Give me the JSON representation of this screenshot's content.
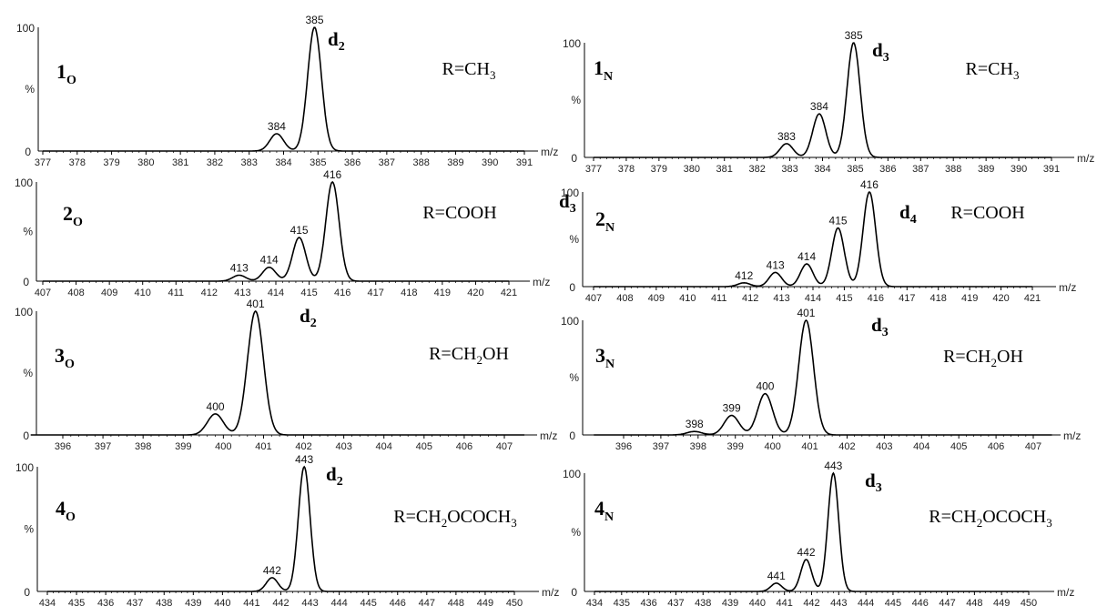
{
  "chart_data": [
    {
      "type": "line",
      "label": "1",
      "label_sub": "O",
      "r_group": "R=CH3",
      "d_label": "d",
      "d_sub": "2",
      "y_axis_labels": {
        "top": "100",
        "mid": "%",
        "bottom": "0"
      },
      "x_unit": "m/z",
      "xlim": [
        377,
        391
      ],
      "ylim": [
        0,
        100
      ],
      "ticks": [
        377,
        378,
        379,
        380,
        381,
        382,
        383,
        384,
        385,
        386,
        387,
        388,
        389,
        390,
        391
      ],
      "peaks": [
        {
          "x": 383.8,
          "y": 14,
          "label": "384"
        },
        {
          "x": 384.9,
          "y": 100,
          "label": "385"
        }
      ]
    },
    {
      "type": "line",
      "label": "1",
      "label_sub": "N",
      "r_group": "R=CH3",
      "d_label": "d",
      "d_sub": "3",
      "y_axis_labels": {
        "top": "100",
        "mid": "%",
        "bottom": "0"
      },
      "x_unit": "m/z",
      "xlim": [
        377,
        391
      ],
      "ylim": [
        0,
        100
      ],
      "ticks": [
        377,
        378,
        379,
        380,
        381,
        382,
        383,
        384,
        385,
        386,
        387,
        388,
        389,
        390,
        391
      ],
      "peaks": [
        {
          "x": 382.9,
          "y": 12,
          "label": "383"
        },
        {
          "x": 383.9,
          "y": 38,
          "label": "384"
        },
        {
          "x": 384.95,
          "y": 100,
          "label": "385"
        }
      ]
    },
    {
      "type": "line",
      "label": "2",
      "label_sub": "O",
      "r_group": "R=COOH",
      "d_label": "d",
      "d_sub": "3",
      "y_axis_labels": {
        "top": "100",
        "mid": "%",
        "bottom": "0"
      },
      "x_unit": "m/z",
      "xlim": [
        407,
        421
      ],
      "ylim": [
        0,
        100
      ],
      "ticks": [
        407,
        408,
        409,
        410,
        411,
        412,
        413,
        414,
        415,
        416,
        417,
        418,
        419,
        420,
        421
      ],
      "peaks": [
        {
          "x": 412.9,
          "y": 6,
          "label": "413"
        },
        {
          "x": 413.8,
          "y": 14,
          "label": "414"
        },
        {
          "x": 414.7,
          "y": 44,
          "label": "415"
        },
        {
          "x": 415.7,
          "y": 100,
          "label": "416"
        }
      ]
    },
    {
      "type": "line",
      "label": "2",
      "label_sub": "N",
      "r_group": "R=COOH",
      "d_label": "d",
      "d_sub": "4",
      "y_axis_labels": {
        "top": "100",
        "mid": "%",
        "bottom": "0"
      },
      "x_unit": "m/z",
      "xlim": [
        407,
        421
      ],
      "ylim": [
        0,
        100
      ],
      "ticks": [
        407,
        408,
        409,
        410,
        411,
        412,
        413,
        414,
        415,
        416,
        417,
        418,
        419,
        420,
        421
      ],
      "peaks": [
        {
          "x": 411.8,
          "y": 4,
          "label": "412"
        },
        {
          "x": 412.8,
          "y": 15,
          "label": "413"
        },
        {
          "x": 413.8,
          "y": 24,
          "label": "414"
        },
        {
          "x": 414.8,
          "y": 62,
          "label": "415"
        },
        {
          "x": 415.8,
          "y": 100,
          "label": "416"
        }
      ]
    },
    {
      "type": "line",
      "label": "3",
      "label_sub": "O",
      "r_group": "R=CH2OH",
      "d_label": "d",
      "d_sub": "2",
      "y_axis_labels": {
        "top": "100",
        "mid": "%",
        "bottom": "0"
      },
      "x_unit": "m/z",
      "xlim": [
        395.2,
        407.5
      ],
      "ylim": [
        0,
        100
      ],
      "ticks": [
        396,
        397,
        398,
        399,
        400,
        401,
        402,
        403,
        404,
        405,
        406,
        407
      ],
      "peaks": [
        {
          "x": 399.8,
          "y": 17,
          "label": "400"
        },
        {
          "x": 400.8,
          "y": 100,
          "label": "401"
        }
      ]
    },
    {
      "type": "line",
      "label": "3",
      "label_sub": "N",
      "r_group": "R=CH2OH",
      "d_label": "d",
      "d_sub": "3",
      "y_axis_labels": {
        "top": "100",
        "mid": "%",
        "bottom": "0"
      },
      "x_unit": "m/z",
      "xlim": [
        395.2,
        407.5
      ],
      "ylim": [
        0,
        100
      ],
      "ticks": [
        396,
        397,
        398,
        399,
        400,
        401,
        402,
        403,
        404,
        405,
        406,
        407
      ],
      "peaks": [
        {
          "x": 397.9,
          "y": 3,
          "label": "398"
        },
        {
          "x": 398.9,
          "y": 17,
          "label": "399"
        },
        {
          "x": 399.8,
          "y": 36,
          "label": "400"
        },
        {
          "x": 400.9,
          "y": 100,
          "label": "401"
        }
      ]
    },
    {
      "type": "line",
      "label": "4",
      "label_sub": "O",
      "r_group": "R=CH2OCOCH3",
      "d_label": "d",
      "d_sub": "2",
      "y_axis_labels": {
        "top": "100",
        "mid": "%",
        "bottom": "0"
      },
      "x_unit": "m/z",
      "xlim": [
        434,
        450
      ],
      "ylim": [
        0,
        100
      ],
      "ticks": [
        434,
        435,
        436,
        437,
        438,
        439,
        440,
        441,
        442,
        443,
        444,
        445,
        446,
        447,
        448,
        449,
        450
      ],
      "peaks": [
        {
          "x": 441.7,
          "y": 11,
          "label": "442"
        },
        {
          "x": 442.8,
          "y": 100,
          "label": "443"
        }
      ]
    },
    {
      "type": "line",
      "label": "4",
      "label_sub": "N",
      "r_group": "R=CH2OCOCH3",
      "d_label": "d",
      "d_sub": "3",
      "y_axis_labels": {
        "top": "100",
        "mid": "%",
        "bottom": "0"
      },
      "x_unit": "m/z",
      "xlim": [
        434,
        450
      ],
      "ylim": [
        0,
        100
      ],
      "ticks": [
        434,
        435,
        436,
        437,
        438,
        439,
        440,
        441,
        442,
        443,
        444,
        445,
        446,
        447,
        448,
        449,
        450
      ],
      "peaks": [
        {
          "x": 440.7,
          "y": 7,
          "label": "441"
        },
        {
          "x": 441.8,
          "y": 27,
          "label": "442"
        },
        {
          "x": 442.8,
          "y": 100,
          "label": "443"
        }
      ]
    }
  ]
}
